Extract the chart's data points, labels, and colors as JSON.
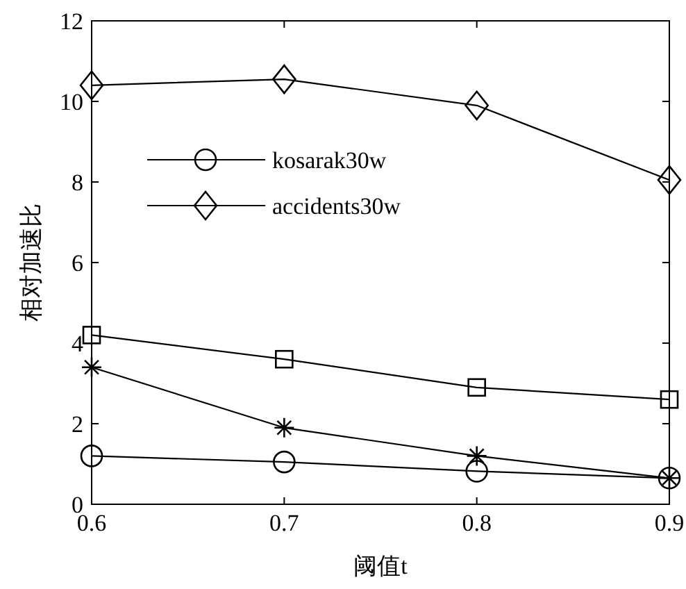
{
  "chart_data": {
    "type": "line",
    "xlabel": "阈值t",
    "ylabel": "相对加速比",
    "x": [
      0.6,
      0.7,
      0.8,
      0.9
    ],
    "series": [
      {
        "color": "#000000",
        "marker": "cross",
        "values": [
          3.4,
          1.9,
          1.2,
          0.65
        ]
      },
      {
        "name": "kosarak30w",
        "color": "#000000",
        "marker": "circle",
        "values": [
          1.2,
          1.05,
          0.82,
          0.65
        ]
      },
      {
        "color": "#000000",
        "marker": "square",
        "values": [
          4.2,
          3.6,
          2.9,
          2.6
        ]
      },
      {
        "name": "accidents30w",
        "color": "#000000",
        "marker": "diamond",
        "values": [
          10.4,
          10.55,
          9.9,
          8.05
        ]
      }
    ],
    "xlim": [
      0.6,
      0.9
    ],
    "xticks": [
      0.6,
      0.7,
      0.8,
      0.9
    ],
    "ylim": [
      0,
      12
    ],
    "yticks": [
      0,
      2,
      4,
      6,
      8,
      10,
      12
    ],
    "legend": "top left",
    "line_style": "solid",
    "grid": false
  }
}
